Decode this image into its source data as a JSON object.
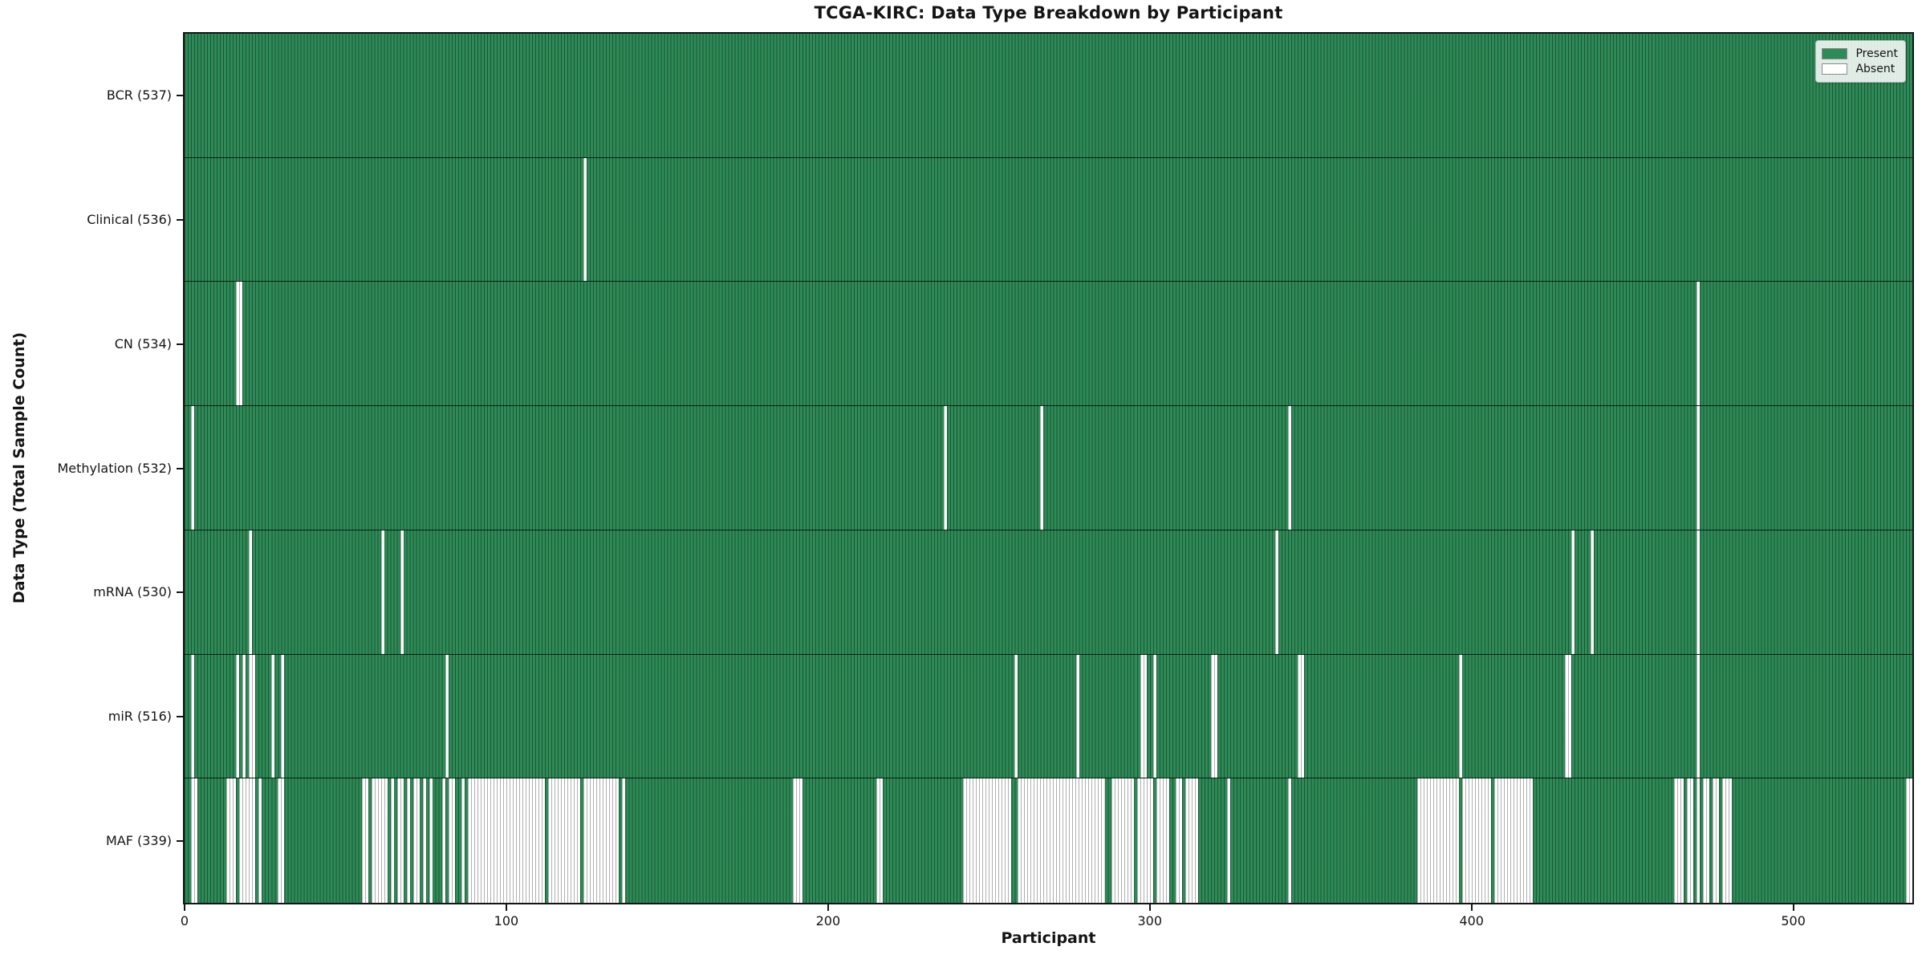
{
  "chart_data": {
    "type": "heatmap",
    "title": "TCGA-KIRC: Data Type Breakdown by Participant",
    "xlabel": "Participant",
    "ylabel": "Data Type (Total Sample Count)",
    "n_participants": 537,
    "x_ticks": [
      0,
      100,
      200,
      300,
      400,
      500
    ],
    "grid": false,
    "legend_position": "upper right",
    "colors": {
      "present": "#2e8b57",
      "absent": "#ffffff"
    },
    "legend": [
      {
        "label": "Present",
        "color": "#2e8b57"
      },
      {
        "label": "Absent",
        "color": "#ffffff"
      }
    ],
    "rows": [
      {
        "label": "BCR (537)",
        "data_type": "BCR",
        "present_count": 537,
        "absent_ranges": []
      },
      {
        "label": "Clinical (536)",
        "data_type": "Clinical",
        "present_count": 536,
        "absent_ranges": [
          [
            124,
            124
          ]
        ]
      },
      {
        "label": "CN (534)",
        "data_type": "CN",
        "present_count": 534,
        "absent_ranges": [
          [
            16,
            17
          ],
          [
            470,
            470
          ]
        ]
      },
      {
        "label": "Methylation (532)",
        "data_type": "Methylation",
        "present_count": 532,
        "absent_ranges": [
          [
            2,
            2
          ],
          [
            236,
            236
          ],
          [
            266,
            266
          ],
          [
            343,
            343
          ],
          [
            470,
            470
          ]
        ]
      },
      {
        "label": "mRNA (530)",
        "data_type": "mRNA",
        "present_count": 530,
        "absent_ranges": [
          [
            20,
            20
          ],
          [
            61,
            61
          ],
          [
            67,
            67
          ],
          [
            339,
            339
          ],
          [
            431,
            431
          ],
          [
            437,
            437
          ],
          [
            470,
            470
          ]
        ]
      },
      {
        "label": "miR (516)",
        "data_type": "miR",
        "present_count": 516,
        "absent_ranges": [
          [
            2,
            2
          ],
          [
            16,
            16
          ],
          [
            18,
            18
          ],
          [
            20,
            21
          ],
          [
            27,
            27
          ],
          [
            30,
            30
          ],
          [
            81,
            81
          ],
          [
            258,
            258
          ],
          [
            277,
            277
          ],
          [
            297,
            298
          ],
          [
            301,
            301
          ],
          [
            319,
            320
          ],
          [
            346,
            347
          ],
          [
            396,
            396
          ],
          [
            429,
            430
          ],
          [
            470,
            470
          ]
        ]
      },
      {
        "label": "MAF (339)",
        "data_type": "MAF",
        "present_count": 339,
        "absent_ranges": [
          [
            2,
            3
          ],
          [
            13,
            15
          ],
          [
            17,
            21
          ],
          [
            23,
            23
          ],
          [
            29,
            30
          ],
          [
            55,
            56
          ],
          [
            58,
            62
          ],
          [
            64,
            64
          ],
          [
            66,
            67
          ],
          [
            69,
            69
          ],
          [
            71,
            72
          ],
          [
            74,
            74
          ],
          [
            76,
            76
          ],
          [
            80,
            80
          ],
          [
            82,
            83
          ],
          [
            86,
            86
          ],
          [
            88,
            111
          ],
          [
            113,
            122
          ],
          [
            124,
            134
          ],
          [
            136,
            136
          ],
          [
            189,
            191
          ],
          [
            215,
            216
          ],
          [
            242,
            256
          ],
          [
            259,
            285
          ],
          [
            288,
            294
          ],
          [
            296,
            300
          ],
          [
            302,
            305
          ],
          [
            308,
            309
          ],
          [
            311,
            314
          ],
          [
            324,
            324
          ],
          [
            343,
            343
          ],
          [
            383,
            395
          ],
          [
            397,
            405
          ],
          [
            407,
            418
          ],
          [
            463,
            465
          ],
          [
            467,
            468
          ],
          [
            470,
            470
          ],
          [
            472,
            473
          ],
          [
            475,
            476
          ],
          [
            478,
            480
          ],
          [
            535,
            536
          ]
        ]
      }
    ]
  }
}
